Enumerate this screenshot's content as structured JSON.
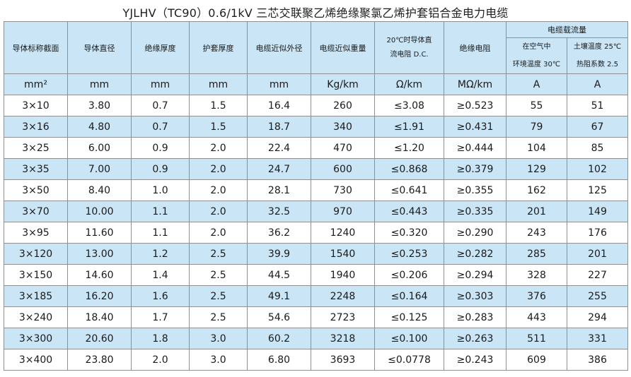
{
  "title": "YJLHV（TC90）0.6/1kV 三芯交联聚乙烯绝缘聚氯乙烯护套铝合金电力电缆",
  "headers": {
    "conductor_section": "导体标称截面",
    "conductor_diameter": "导体直径",
    "insulation_thickness": "绝缘厚度",
    "sheath_thickness": "护套厚度",
    "cable_od": "电缆近似外径",
    "cable_weight": "电缆近似重量",
    "dc_resistance_line1": "20℃时导体直",
    "dc_resistance_line2": "流电阻 D.C.",
    "insulation_resistance": "绝缘电阻",
    "ampacity": "电缆载流量",
    "in_air_line1": "在空气中",
    "in_air_line2": "环境温度 30℃",
    "in_soil_line1": "土壤温度 25℃",
    "in_soil_line2": "热阻系数 2.5"
  },
  "units": [
    "mm²",
    "mm",
    "mm",
    "mm",
    "mm",
    "Kg/km",
    "Ω/km",
    "MΩ/km",
    "A",
    "A"
  ],
  "rows": [
    [
      "3×10",
      "3.80",
      "0.7",
      "1.5",
      "16.4",
      "260",
      "≤3.08",
      "≥0.523",
      "55",
      "51"
    ],
    [
      "3×16",
      "4.80",
      "0.7",
      "1.5",
      "18.7",
      "340",
      "≤1.91",
      "≥0.431",
      "79",
      "67"
    ],
    [
      "3×25",
      "6.00",
      "0.9",
      "2.0",
      "22.4",
      "470",
      "≤1.20",
      "≥0.444",
      "104",
      "85"
    ],
    [
      "3×35",
      "7.00",
      "0.9",
      "2.0",
      "24.7",
      "600",
      "≤0.868",
      "≥0.379",
      "129",
      "102"
    ],
    [
      "3×50",
      "8.40",
      "1.0",
      "2.0",
      "28.1",
      "730",
      "≤0.641",
      "≥0.355",
      "162",
      "125"
    ],
    [
      "3×70",
      "10.00",
      "1.1",
      "2.0",
      "32.5",
      "970",
      "≤0.443",
      "≥0.335",
      "201",
      "149"
    ],
    [
      "3×95",
      "11.60",
      "1.1",
      "2.0",
      "36.2",
      "1240",
      "≤0.320",
      "≥0.290",
      "243",
      "176"
    ],
    [
      "3×120",
      "13.00",
      "1.2",
      "2.5",
      "39.9",
      "1540",
      "≤0.253",
      "≥0.282",
      "285",
      "201"
    ],
    [
      "3×150",
      "14.60",
      "1.4",
      "2.5",
      "44.5",
      "1940",
      "≤0.206",
      "≥0.294",
      "328",
      "227"
    ],
    [
      "3×185",
      "16.20",
      "1.6",
      "2.5",
      "49.1",
      "2248",
      "≤0.164",
      "≥0.303",
      "376",
      "255"
    ],
    [
      "3×240",
      "18.40",
      "1.7",
      "2.5",
      "54.6",
      "2723",
      "≤0.125",
      "≥0.283",
      "443",
      "294"
    ],
    [
      "3×300",
      "20.60",
      "1.8",
      "3.0",
      "60.2",
      "3218",
      "≤0.100",
      "≥0.263",
      "511",
      "331"
    ],
    [
      "3×400",
      "23.80",
      "2.0",
      "3.0",
      "6.80",
      "3693",
      "≤0.0778",
      "≥0.243",
      "609",
      "386"
    ]
  ],
  "colors": {
    "shade": "#c9e5f6",
    "border": "#8f8f8f"
  }
}
